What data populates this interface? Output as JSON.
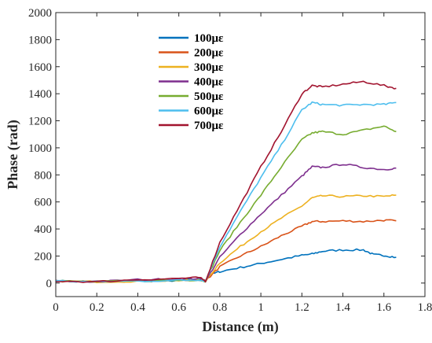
{
  "chart_data": {
    "type": "line",
    "xlabel": "Distance (m)",
    "ylabel": "Phase (rad)",
    "xlim": [
      0,
      1.8
    ],
    "ylim": [
      -100,
      2000
    ],
    "xticks": [
      0,
      0.2,
      0.4,
      0.6,
      0.8,
      1,
      1.2,
      1.4,
      1.6,
      1.8
    ],
    "yticks": [
      0,
      200,
      400,
      600,
      800,
      1000,
      1200,
      1400,
      1600,
      1800,
      2000
    ],
    "x_tick_labels": [
      "0",
      "0.2",
      "0.4",
      "0.6",
      "0.8",
      "1",
      "1.2",
      "1.4",
      "1.6",
      "1.8"
    ],
    "y_tick_labels": [
      "0",
      "200",
      "400",
      "600",
      "800",
      "1000",
      "1200",
      "1400",
      "1600",
      "1800",
      "2000"
    ],
    "grid": false,
    "legend_position": "top-center",
    "series": [
      {
        "name": "100με",
        "color": "#0072BD",
        "x": [
          0,
          0.2,
          0.4,
          0.6,
          0.7,
          0.73,
          0.75,
          0.8,
          0.9,
          1.0,
          1.1,
          1.2,
          1.25,
          1.3,
          1.4,
          1.5,
          1.55,
          1.6,
          1.66
        ],
        "y": [
          15,
          10,
          15,
          20,
          30,
          15,
          60,
          85,
          115,
          145,
          175,
          205,
          215,
          235,
          245,
          245,
          210,
          205,
          190
        ]
      },
      {
        "name": "200με",
        "color": "#D95319",
        "x": [
          0,
          0.2,
          0.4,
          0.6,
          0.7,
          0.73,
          0.8,
          0.9,
          1.0,
          1.1,
          1.2,
          1.25,
          1.3,
          1.4,
          1.5,
          1.6,
          1.66
        ],
        "y": [
          15,
          10,
          15,
          20,
          25,
          15,
          120,
          200,
          270,
          350,
          420,
          455,
          455,
          460,
          455,
          465,
          460
        ]
      },
      {
        "name": "300με",
        "color": "#EDB120",
        "x": [
          0,
          0.2,
          0.4,
          0.6,
          0.7,
          0.73,
          0.8,
          0.9,
          1.0,
          1.1,
          1.2,
          1.25,
          1.3,
          1.4,
          1.5,
          1.6,
          1.66
        ],
        "y": [
          15,
          10,
          15,
          20,
          25,
          15,
          150,
          270,
          380,
          480,
          570,
          630,
          645,
          640,
          645,
          640,
          650
        ]
      },
      {
        "name": "400με",
        "color": "#7E2F8E",
        "x": [
          0,
          0.2,
          0.4,
          0.6,
          0.7,
          0.73,
          0.8,
          0.9,
          1.0,
          1.1,
          1.2,
          1.25,
          1.3,
          1.4,
          1.5,
          1.6,
          1.66
        ],
        "y": [
          15,
          10,
          25,
          30,
          35,
          15,
          190,
          360,
          510,
          650,
          790,
          860,
          855,
          880,
          855,
          840,
          850
        ]
      },
      {
        "name": "500με",
        "color": "#77AC30",
        "x": [
          0,
          0.2,
          0.4,
          0.6,
          0.7,
          0.73,
          0.8,
          0.9,
          1.0,
          1.1,
          1.2,
          1.25,
          1.3,
          1.4,
          1.5,
          1.6,
          1.66
        ],
        "y": [
          15,
          10,
          15,
          20,
          25,
          15,
          240,
          450,
          650,
          860,
          1060,
          1110,
          1120,
          1100,
          1130,
          1160,
          1120
        ]
      },
      {
        "name": "600με",
        "color": "#4DBEEE",
        "x": [
          0,
          0.2,
          0.4,
          0.6,
          0.7,
          0.73,
          0.8,
          0.9,
          1.0,
          1.1,
          1.2,
          1.25,
          1.3,
          1.4,
          1.5,
          1.6,
          1.66
        ],
        "y": [
          15,
          10,
          15,
          20,
          25,
          15,
          270,
          530,
          780,
          1020,
          1280,
          1335,
          1320,
          1315,
          1320,
          1320,
          1335
        ]
      },
      {
        "name": "700με",
        "color": "#A2142F",
        "x": [
          0,
          0.2,
          0.4,
          0.6,
          0.7,
          0.73,
          0.8,
          0.9,
          1.0,
          1.1,
          1.2,
          1.25,
          1.3,
          1.4,
          1.5,
          1.6,
          1.66
        ],
        "y": [
          15,
          10,
          25,
          35,
          40,
          15,
          300,
          580,
          860,
          1120,
          1400,
          1460,
          1450,
          1470,
          1490,
          1460,
          1440
        ]
      }
    ]
  }
}
